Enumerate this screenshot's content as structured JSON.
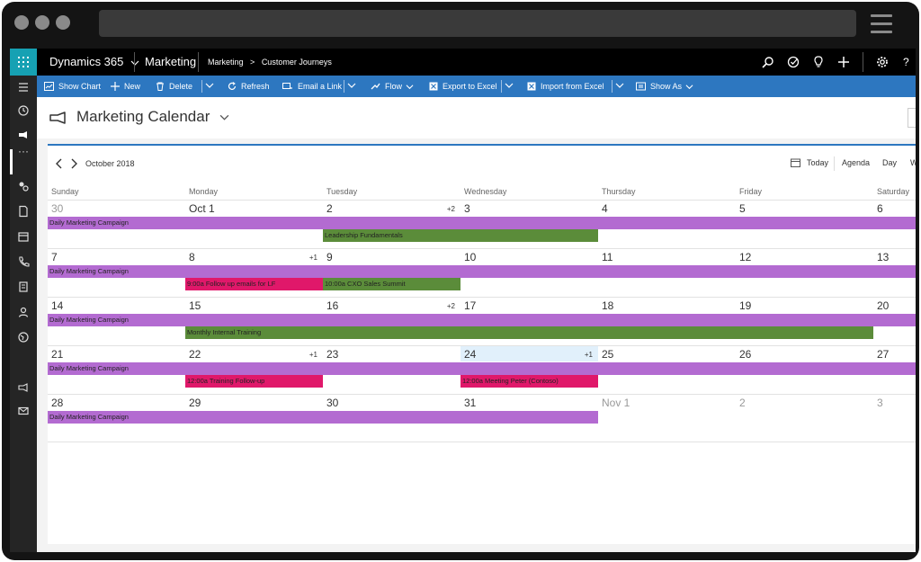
{
  "nav": {
    "app_name": "Dynamics 365",
    "module": "Marketing",
    "breadcrumb_root": "Marketing",
    "breadcrumb_sep": ">",
    "breadcrumb_page": "Customer Journeys"
  },
  "commands": {
    "show_chart": "Show Chart",
    "new": "New",
    "delete": "Delete",
    "refresh": "Refresh",
    "email_link": "Email a Link",
    "flow": "Flow",
    "export_excel": "Export to Excel",
    "import_excel": "Import from Excel",
    "show_as": "Show As"
  },
  "page": {
    "title": "Marketing Calendar"
  },
  "calendar": {
    "month_label": "October 2018",
    "views": {
      "today": "Today",
      "agenda": "Agenda",
      "day": "Day",
      "week": "W"
    },
    "day_headers": [
      "Sunday",
      "Monday",
      "Tuesday",
      "Wednesday",
      "Thursday",
      "Friday",
      "Saturday"
    ],
    "weeks": [
      {
        "days": [
          {
            "label": "30",
            "other": true
          },
          {
            "label": "Oct 1"
          },
          {
            "label": "2",
            "more": "+2"
          },
          {
            "label": "3"
          },
          {
            "label": "4"
          },
          {
            "label": "5"
          },
          {
            "label": "6"
          }
        ],
        "events": [
          {
            "title": "Daily Marketing Campaign",
            "color": "#b36bd1",
            "start": 0,
            "span": 7,
            "row": 0,
            "cont": true
          },
          {
            "title": "Leadership Fundamentals",
            "color": "#5b8c3a",
            "start": 2,
            "span": 2,
            "row": 1
          }
        ]
      },
      {
        "days": [
          {
            "label": "7"
          },
          {
            "label": "8",
            "more": "+1"
          },
          {
            "label": "9"
          },
          {
            "label": "10"
          },
          {
            "label": "11"
          },
          {
            "label": "12"
          },
          {
            "label": "13"
          }
        ],
        "events": [
          {
            "title": "Daily Marketing Campaign",
            "color": "#b36bd1",
            "start": 0,
            "span": 7,
            "row": 0,
            "cont": true
          },
          {
            "title": "9:00a Follow up emails for LF",
            "color": "#e0186a",
            "start": 1,
            "span": 1,
            "row": 1
          },
          {
            "title": "10:00a CXO Sales Summit",
            "color": "#5b8c3a",
            "start": 2,
            "span": 1,
            "row": 1
          }
        ]
      },
      {
        "days": [
          {
            "label": "14"
          },
          {
            "label": "15"
          },
          {
            "label": "16",
            "more": "+2"
          },
          {
            "label": "17"
          },
          {
            "label": "18"
          },
          {
            "label": "19"
          },
          {
            "label": "20"
          }
        ],
        "events": [
          {
            "title": "Daily Marketing Campaign",
            "color": "#b36bd1",
            "start": 0,
            "span": 7,
            "row": 0,
            "cont": true
          },
          {
            "title": "Monthly Internal Training",
            "color": "#5b8c3a",
            "start": 1,
            "span": 5,
            "row": 1
          }
        ]
      },
      {
        "days": [
          {
            "label": "21"
          },
          {
            "label": "22",
            "more": "+1"
          },
          {
            "label": "23"
          },
          {
            "label": "24",
            "more": "+1",
            "today": true
          },
          {
            "label": "25"
          },
          {
            "label": "26"
          },
          {
            "label": "27"
          }
        ],
        "events": [
          {
            "title": "Daily Marketing Campaign",
            "color": "#b36bd1",
            "start": 0,
            "span": 7,
            "row": 0,
            "cont": true
          },
          {
            "title": "12:00a Training Follow-up",
            "color": "#e0186a",
            "start": 1,
            "span": 1,
            "row": 1
          },
          {
            "title": "12:00a Meeting Peter (Contoso)",
            "color": "#e0186a",
            "start": 3,
            "span": 1,
            "row": 1
          }
        ]
      },
      {
        "days": [
          {
            "label": "28"
          },
          {
            "label": "29"
          },
          {
            "label": "30"
          },
          {
            "label": "31"
          },
          {
            "label": "Nov 1",
            "other": true
          },
          {
            "label": "2",
            "other": true
          },
          {
            "label": "3",
            "other": true
          }
        ],
        "events": [
          {
            "title": "Daily Marketing Campaign",
            "color": "#b36bd1",
            "start": 0,
            "span": 4,
            "row": 0
          }
        ]
      }
    ]
  },
  "colors": {
    "accent": "#2d77c0",
    "waffle": "#16a1b3",
    "campaign_purple": "#b36bd1",
    "event_green": "#5b8c3a",
    "event_red": "#e0186a"
  }
}
